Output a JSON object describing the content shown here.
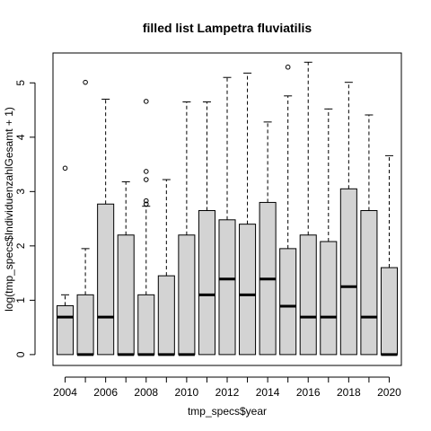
{
  "chart_data": {
    "type": "boxplot",
    "title": "filled list Lampetra fluviatilis",
    "xlabel": "tmp_specs$year",
    "ylabel": "log(tmp_specs$IndividuenzahlGesamt + 1)",
    "ylim": [
      -0.2,
      5.55
    ],
    "y_ticks": [
      "0",
      "1",
      "2",
      "3",
      "4",
      "5"
    ],
    "x_tick_labels": [
      "2004",
      "2006",
      "2008",
      "2010",
      "2012",
      "2014",
      "2016",
      "2018",
      "2020"
    ],
    "grid": false,
    "legend": "none",
    "colors": {
      "box_fill": "#d3d3d3",
      "stroke": "#000000"
    },
    "boxes": [
      {
        "year": 2004,
        "whisker_low": 0,
        "q1": 0,
        "median": 0.69,
        "q3": 0.9,
        "whisker_high": 1.1,
        "outliers": [
          3.43
        ]
      },
      {
        "year": 2005,
        "whisker_low": 0,
        "q1": 0,
        "median": 0,
        "q3": 1.1,
        "whisker_high": 1.95,
        "outliers": [
          5.01
        ]
      },
      {
        "year": 2006,
        "whisker_low": 0,
        "q1": 0,
        "median": 0.69,
        "q3": 2.77,
        "whisker_high": 4.7,
        "outliers": []
      },
      {
        "year": 2007,
        "whisker_low": 0,
        "q1": 0,
        "median": 0,
        "q3": 2.2,
        "whisker_high": 3.18,
        "outliers": []
      },
      {
        "year": 2008,
        "whisker_low": 0,
        "q1": 0,
        "median": 0,
        "q3": 1.1,
        "whisker_high": 2.73,
        "outliers": [
          2.77,
          2.83,
          3.22,
          3.37,
          4.66
        ]
      },
      {
        "year": 2009,
        "whisker_low": 0,
        "q1": 0,
        "median": 0,
        "q3": 1.45,
        "whisker_high": 3.22,
        "outliers": []
      },
      {
        "year": 2010,
        "whisker_low": 0,
        "q1": 0,
        "median": 0,
        "q3": 2.2,
        "whisker_high": 4.65,
        "outliers": []
      },
      {
        "year": 2011,
        "whisker_low": 0,
        "q1": 0,
        "median": 1.1,
        "q3": 2.65,
        "whisker_high": 4.65,
        "outliers": []
      },
      {
        "year": 2012,
        "whisker_low": 0,
        "q1": 0,
        "median": 1.39,
        "q3": 2.48,
        "whisker_high": 5.1,
        "outliers": []
      },
      {
        "year": 2013,
        "whisker_low": 0,
        "q1": 0,
        "median": 1.1,
        "q3": 2.4,
        "whisker_high": 5.18,
        "outliers": []
      },
      {
        "year": 2014,
        "whisker_low": 0,
        "q1": 0,
        "median": 1.39,
        "q3": 2.8,
        "whisker_high": 4.28,
        "outliers": []
      },
      {
        "year": 2015,
        "whisker_low": 0,
        "q1": 0,
        "median": 0.89,
        "q3": 1.95,
        "whisker_high": 4.76,
        "outliers": [
          5.29
        ]
      },
      {
        "year": 2016,
        "whisker_low": 0,
        "q1": 0,
        "median": 0.69,
        "q3": 2.2,
        "whisker_high": 5.38,
        "outliers": []
      },
      {
        "year": 2017,
        "whisker_low": 0,
        "q1": 0,
        "median": 0.69,
        "q3": 2.08,
        "whisker_high": 4.52,
        "outliers": []
      },
      {
        "year": 2018,
        "whisker_low": 0,
        "q1": 0,
        "median": 1.25,
        "q3": 3.05,
        "whisker_high": 5.01,
        "outliers": []
      },
      {
        "year": 2019,
        "whisker_low": 0,
        "q1": 0,
        "median": 0.69,
        "q3": 2.65,
        "whisker_high": 4.41,
        "outliers": []
      },
      {
        "year": 2020,
        "whisker_low": 0,
        "q1": 0,
        "median": 0,
        "q3": 1.6,
        "whisker_high": 3.66,
        "outliers": []
      }
    ]
  }
}
